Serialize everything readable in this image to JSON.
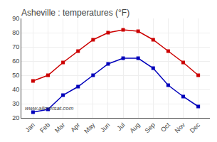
{
  "chart_data": {
    "type": "line",
    "title": "Asheville : temperatures (°F)",
    "categories": [
      "Jan",
      "Feb",
      "Mar",
      "Apr",
      "May",
      "Jun",
      "Jul",
      "Aug",
      "Sep",
      "Oct",
      "Nov",
      "Dec"
    ],
    "series": [
      {
        "color": "#cc0000",
        "values": [
          46,
          50,
          59,
          67,
          75,
          80,
          82,
          81,
          75,
          67,
          59,
          50
        ]
      },
      {
        "color": "#0000bb",
        "values": [
          24,
          26,
          36,
          42,
          50,
          58,
          62,
          62,
          55,
          43,
          35,
          28
        ]
      }
    ],
    "marker": "square",
    "ylim": [
      20,
      90
    ],
    "yticks": [
      20,
      30,
      40,
      50,
      60,
      70,
      80,
      90
    ],
    "grid": true,
    "annotation": "www.allmetsat.com"
  }
}
